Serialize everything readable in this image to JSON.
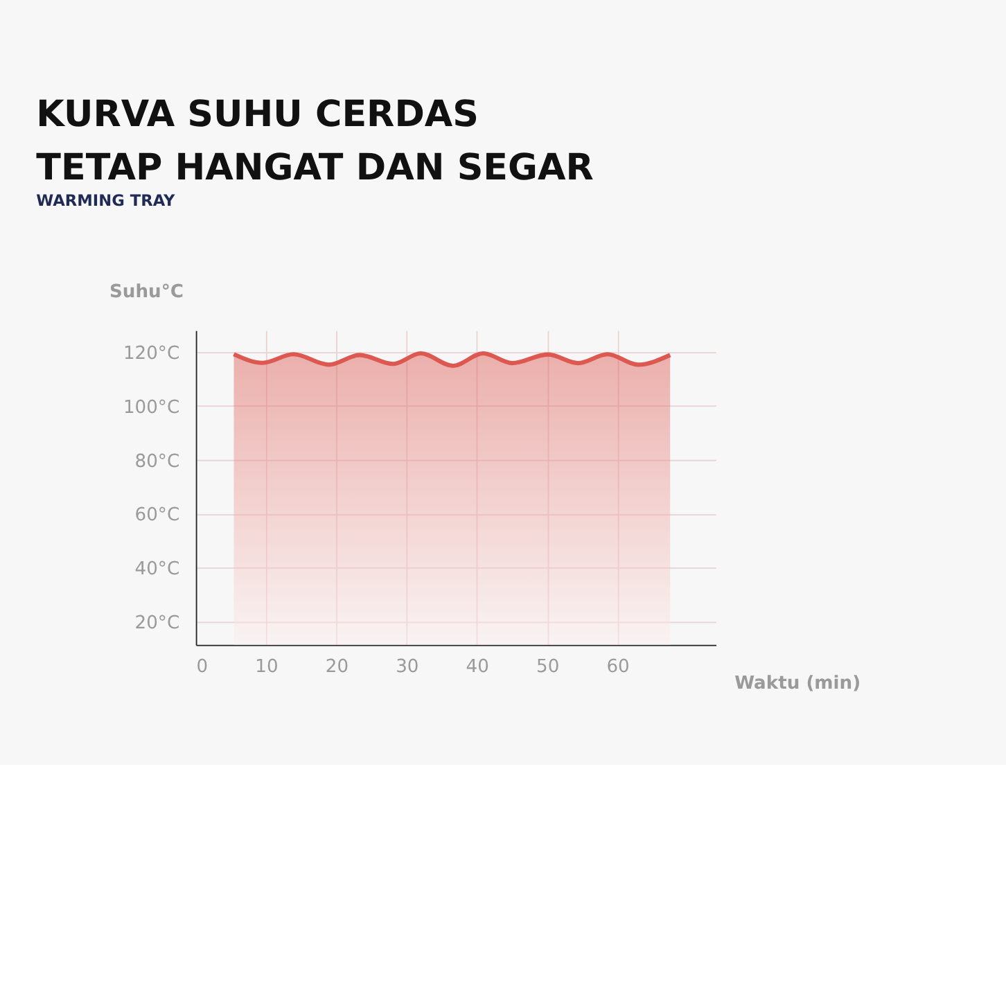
{
  "chart_data": {
    "type": "area",
    "title": [
      "KURVA SUHU CERDAS",
      "TETAP HANGAT DAN SEGAR"
    ],
    "subtitle": "WARMING TRAY",
    "xlabel": "Waktu (min)",
    "ylabel": "Suhu°C",
    "xlim": [
      0,
      74
    ],
    "xticks": [
      0,
      10,
      20,
      30,
      40,
      50,
      60
    ],
    "ylim": [
      11.5,
      128
    ],
    "yticks": [
      {
        "value": 20,
        "label": "20°C"
      },
      {
        "value": 40,
        "label": "40°C"
      },
      {
        "value": 60,
        "label": "60°C"
      },
      {
        "value": 80,
        "label": "80°C"
      },
      {
        "value": 100,
        "label": "100°C"
      },
      {
        "value": 120,
        "label": "120°C"
      }
    ],
    "grid": true,
    "series": [
      {
        "color": "#dc5850",
        "x": [
          5.4,
          9.5,
          13.9,
          18.9,
          23.3,
          28.1,
          32,
          36.6,
          40.9,
          45,
          50.1,
          54.4,
          58.6,
          62.9,
          67.5
        ],
        "values": [
          119.2,
          116,
          119.2,
          115.3,
          118.9,
          115.6,
          119.5,
          114.9,
          119.5,
          115.9,
          119.1,
          115.9,
          119.2,
          115.3,
          118.9
        ]
      }
    ]
  }
}
